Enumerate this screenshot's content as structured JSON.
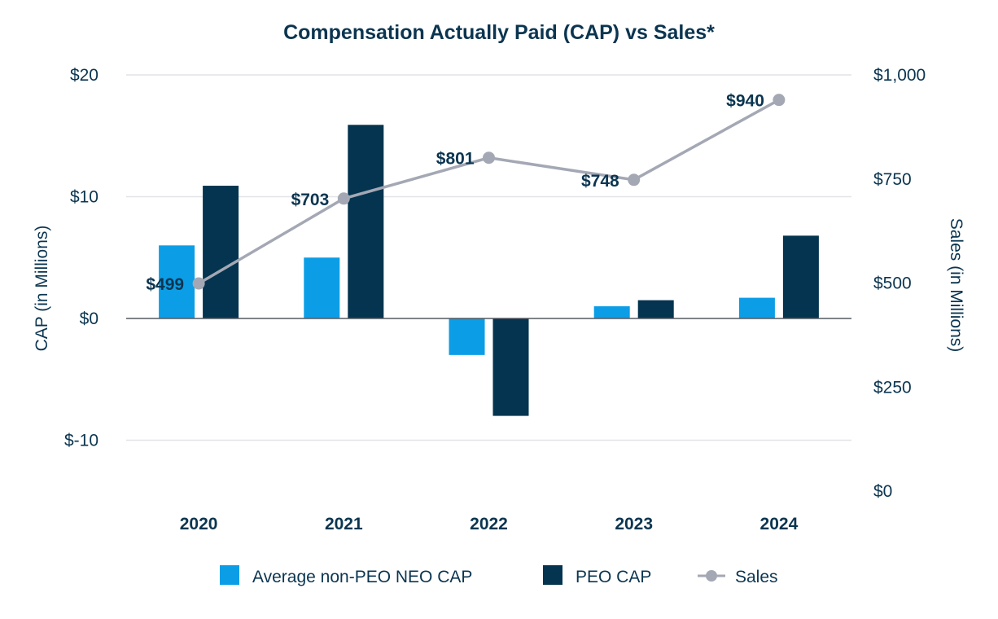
{
  "chart_data": {
    "type": "bar",
    "title": "Compensation Actually Paid (CAP) vs Sales*",
    "categories": [
      "2020",
      "2021",
      "2022",
      "2023",
      "2024"
    ],
    "left_axis": {
      "label": "CAP (in Millions)",
      "range": [
        -15,
        20
      ],
      "ticks": [
        20,
        10,
        0,
        -10
      ],
      "tick_labels": [
        "$20",
        "$10",
        "$0",
        "$-10"
      ]
    },
    "right_axis": {
      "label": "Sales (in Millions)",
      "range": [
        0,
        1000
      ],
      "ticks": [
        1000,
        750,
        500,
        250,
        0
      ],
      "tick_labels": [
        "$1,000",
        "$750",
        "$500",
        "$250",
        "$0"
      ]
    },
    "series": [
      {
        "name": "Average non-PEO NEO CAP",
        "kind": "bar",
        "axis": "left",
        "color": "#0b9ee6",
        "values": [
          6.0,
          5.0,
          -3.0,
          1.0,
          1.7
        ]
      },
      {
        "name": "PEO CAP",
        "kind": "bar",
        "axis": "left",
        "color": "#04344f",
        "values": [
          10.9,
          15.9,
          -8.0,
          1.5,
          6.8
        ]
      },
      {
        "name": "Sales",
        "kind": "line",
        "axis": "right",
        "color": "#a4a8b4",
        "values": [
          499,
          703,
          801,
          748,
          940
        ],
        "labels": [
          "$499",
          "$703",
          "$801",
          "$748",
          "$940"
        ]
      }
    ],
    "legend": [
      "Average non-PEO NEO CAP",
      "PEO CAP",
      "Sales"
    ],
    "legend_position": "bottom-center",
    "grid": true
  }
}
